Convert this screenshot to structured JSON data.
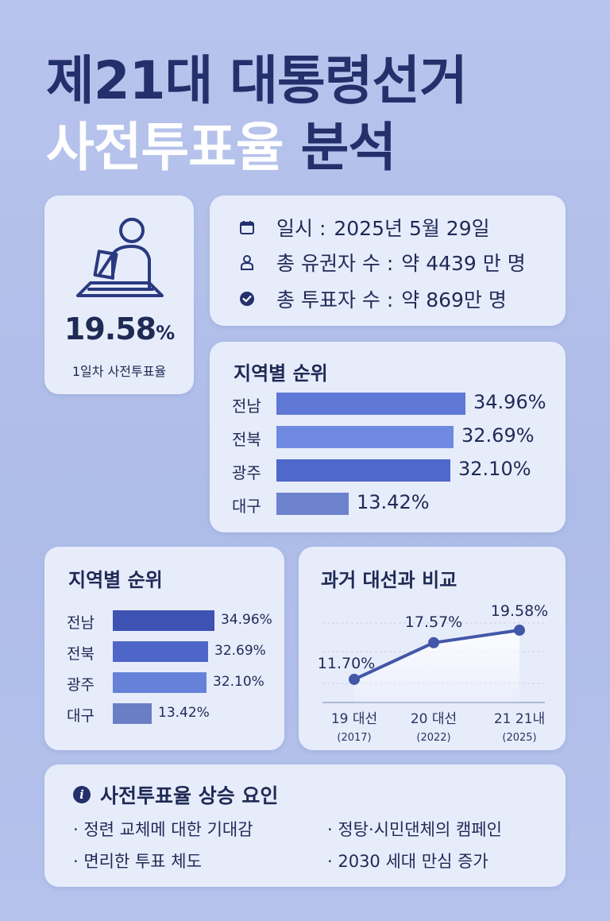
{
  "title": {
    "line1": "제21대 대통령선거",
    "line2_light": "사전투표율",
    "line2_dark": "분석"
  },
  "rate_card": {
    "icon": "voter-ballot-icon",
    "value": "19.58",
    "unit": "%",
    "label": "1일차 사전투표율"
  },
  "info": {
    "rows": [
      {
        "icon": "calendar-icon",
        "label": "일시 :",
        "value": "2025년 5월 29일"
      },
      {
        "icon": "person-icon",
        "label": "총 유권자 수 :",
        "value": "약 4439 만 명"
      },
      {
        "icon": "check-circle-icon",
        "label": "총 투표자 수 :",
        "value": "약 869만 명"
      }
    ]
  },
  "region_ranking_1": {
    "title": "지역별 순위",
    "items": [
      {
        "name": "전남",
        "value": "34.96%",
        "pct": 34.96,
        "color": "#5f78d6"
      },
      {
        "name": "전북",
        "value": "32.69%",
        "pct": 32.69,
        "color": "#6f8ae0"
      },
      {
        "name": "광주",
        "value": "32.10%",
        "pct": 32.1,
        "color": "#4f68cc"
      },
      {
        "name": "대구",
        "value": "13.42%",
        "pct": 13.42,
        "color": "#6c82cc"
      }
    ]
  },
  "region_ranking_2": {
    "title": "지역별 순위",
    "items": [
      {
        "name": "전남",
        "value": "34.96%",
        "pct": 34.96,
        "color": "#3e52b4"
      },
      {
        "name": "전북",
        "value": "32.69%",
        "pct": 32.69,
        "color": "#4e66c8"
      },
      {
        "name": "광주",
        "value": "32.10%",
        "pct": 32.1,
        "color": "#6582d8"
      },
      {
        "name": "대구",
        "value": "13.42%",
        "pct": 13.42,
        "color": "#6a7ec6"
      }
    ]
  },
  "comparison": {
    "title": "과거 대선과 비교"
  },
  "chart_data": {
    "type": "line",
    "categories": [
      "19 대선 (2017)",
      "20 대선 (2022)",
      "21 21내 (2025)"
    ],
    "x_labels": [
      {
        "name": "19 대선",
        "year": "(2017)"
      },
      {
        "name": "20 대선",
        "year": "(2022)"
      },
      {
        "name": "21 21내",
        "year": "(2025)"
      }
    ],
    "values": [
      11.7,
      17.57,
      19.58
    ],
    "data_labels": [
      "11.70%",
      "17.57%",
      "19.58%"
    ],
    "ylim": [
      8,
      22
    ],
    "grid": true,
    "line_color": "#4357a8"
  },
  "factors": {
    "icon": "info-icon",
    "title": "사전투표율 상승 요인",
    "items": [
      "· 정련 교체메 대한 기대감",
      "· 정탕·시민댄체의 캠페인",
      "· 면리한 투표 체도",
      "· 2030 세대 만심 증가"
    ]
  }
}
